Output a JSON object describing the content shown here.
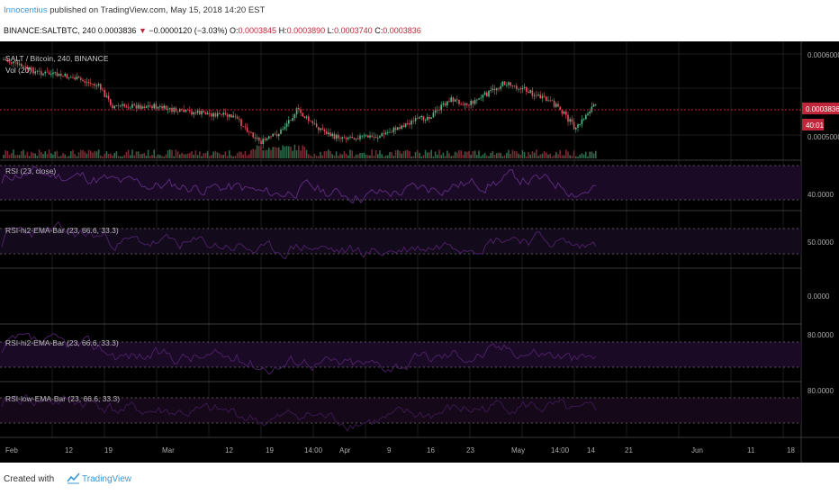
{
  "header": {
    "author": "Innocentius",
    "published_text": " published on TradingView.com, May 15, 2018 14:20 EST",
    "symbol": "BINANCE:SALTBTC, 240",
    "last": "0.0003836",
    "change": "−0.0000120 (−3.03%)",
    "o_label": "O:",
    "o": "0.0003845",
    "h_label": "H:",
    "h": "0.0003890",
    "l_label": "L:",
    "l": "0.0003740",
    "c_label": "C:",
    "c": "0.0003836"
  },
  "panes": {
    "main": {
      "title": "SALT / Bitcoin, 240, BINANCE",
      "vol_label": "Vol (20)",
      "axis_labels": [
        "0.0006000",
        "0.0005000"
      ],
      "price_badge": "0.0003836",
      "countdown_badge": "40:01"
    },
    "rsi": {
      "title": "RSI (23, close)",
      "axis_label": "40.0000"
    },
    "rsi_hi2": {
      "title": "RSI-hi2-EMA-Bar (23, 66.6, 33.3)",
      "axis_label": "50.0000"
    },
    "empty": {
      "axis_label": "0.0000"
    },
    "rsi_hi2_b": {
      "title": "RSI-hi2-EMA-Bar (23, 66.6, 33.3)",
      "axis_label": "80.0000"
    },
    "rsi_low": {
      "title": "RSI-low-EMA-Bar (23, 66.6, 33.3)",
      "axis_label": "80.0000"
    }
  },
  "time_axis": [
    "Feb",
    "12",
    "19",
    "Mar",
    "12",
    "19",
    "14:00",
    "Apr",
    "9",
    "16",
    "23",
    "May",
    "14:00",
    "14",
    "21",
    "Jun",
    "11",
    "18"
  ],
  "footer": {
    "created_with": "Created with",
    "brand": "TradingView"
  },
  "colors": {
    "background": "#000000",
    "up_candle": "#53b987",
    "down_candle": "#eb4d5c",
    "rsi_fill": "#1a0a26",
    "rsi_line": "#5a2a7a",
    "price_line": "#c0263a",
    "author": "#3a97d8"
  }
}
